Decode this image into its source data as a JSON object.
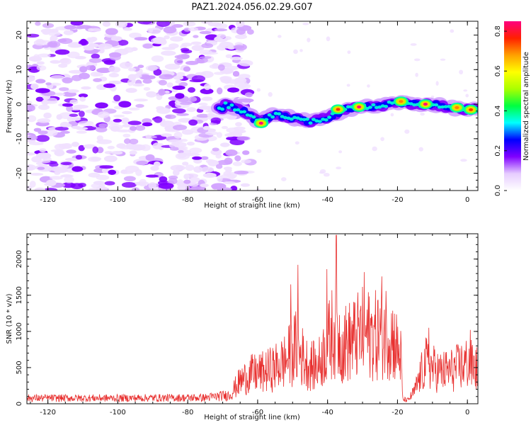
{
  "title": "PAZ1.2024.056.02.29.G07",
  "colors": {
    "snr_line": "#e8302f",
    "axes": "#111111",
    "background": "#ffffff"
  },
  "chart_data": [
    {
      "type": "heatmap",
      "title": "PAZ1.2024.056.02.29.G07",
      "xlabel": "Height of straight line (km)",
      "ylabel": "Frequency (Hz)",
      "xlim": [
        -126,
        3
      ],
      "ylim": [
        -25,
        24
      ],
      "x_ticks": [
        -120,
        -100,
        -80,
        -60,
        -40,
        -20,
        0
      ],
      "y_ticks": [
        -20,
        -10,
        0,
        10,
        20
      ],
      "colorbar": {
        "label": "Normalized spectral amplitude",
        "range": [
          0,
          0.85
        ],
        "ticks": [
          0.0,
          0.2,
          0.4,
          0.6,
          0.8
        ],
        "colormap": "gist_rainbow_r",
        "stops": [
          "#ffffff",
          "#e6ccff",
          "#8000ff",
          "#0000ff",
          "#00ffff",
          "#00ff40",
          "#aaff00",
          "#ffff00",
          "#ffa000",
          "#ff2000",
          "#ff0080"
        ]
      },
      "ridge": {
        "description_points": [
          {
            "x": -70,
            "y": 0
          },
          {
            "x": -64,
            "y": -2
          },
          {
            "x": -60,
            "y": -5
          },
          {
            "x": -55,
            "y": -3
          },
          {
            "x": -50,
            "y": -4
          },
          {
            "x": -45,
            "y": -5
          },
          {
            "x": -40,
            "y": -4
          },
          {
            "x": -35,
            "y": -1.5
          },
          {
            "x": -30,
            "y": -0.8
          },
          {
            "x": -25,
            "y": -0.5
          },
          {
            "x": -20,
            "y": 0.5
          },
          {
            "x": -15,
            "y": 0
          },
          {
            "x": -10,
            "y": 0
          },
          {
            "x": -5,
            "y": -1
          },
          {
            "x": 0,
            "y": -1.5
          },
          {
            "x": 3,
            "y": -1.5
          }
        ],
        "peaks": [
          {
            "x": -59,
            "y": -5.5,
            "value": 0.85
          },
          {
            "x": -37,
            "y": -1.5,
            "value": 0.75
          },
          {
            "x": -31,
            "y": -0.8,
            "value": 0.85
          },
          {
            "x": -19,
            "y": 0.8,
            "value": 0.7
          },
          {
            "x": -12,
            "y": 0,
            "value": 0.85
          },
          {
            "x": -3,
            "y": -1,
            "value": 0.7
          },
          {
            "x": 1,
            "y": -1.6,
            "value": 0.75
          }
        ]
      }
    },
    {
      "type": "line",
      "xlabel": "Height of straight line (km)",
      "ylabel": "SNR (10 * v/v)",
      "xlim": [
        -126,
        3
      ],
      "ylim": [
        0,
        2350
      ],
      "x_ticks": [
        -120,
        -100,
        -80,
        -60,
        -40,
        -20,
        0
      ],
      "y_ticks": [
        0,
        500,
        1000,
        1500,
        2000
      ],
      "envelope": [
        {
          "x": -126,
          "y": 130
        },
        {
          "x": -100,
          "y": 130
        },
        {
          "x": -75,
          "y": 140
        },
        {
          "x": -68,
          "y": 200
        },
        {
          "x": -65,
          "y": 500
        },
        {
          "x": -62,
          "y": 650
        },
        {
          "x": -58,
          "y": 700
        },
        {
          "x": -55,
          "y": 800
        },
        {
          "x": -52,
          "y": 950
        },
        {
          "x": -49,
          "y": 1250
        },
        {
          "x": -46,
          "y": 900
        },
        {
          "x": -43,
          "y": 800
        },
        {
          "x": -40,
          "y": 1300
        },
        {
          "x": -38,
          "y": 1700
        },
        {
          "x": -36,
          "y": 1300
        },
        {
          "x": -33,
          "y": 1400
        },
        {
          "x": -30,
          "y": 1550
        },
        {
          "x": -26,
          "y": 1500
        },
        {
          "x": -23,
          "y": 1650
        },
        {
          "x": -21,
          "y": 1400
        },
        {
          "x": -19,
          "y": 1000
        },
        {
          "x": -18.5,
          "y": 100
        },
        {
          "x": -17,
          "y": 80
        },
        {
          "x": -15,
          "y": 300
        },
        {
          "x": -12,
          "y": 900
        },
        {
          "x": -8,
          "y": 700
        },
        {
          "x": -4,
          "y": 750
        },
        {
          "x": 0,
          "y": 900
        },
        {
          "x": 3,
          "y": 750
        }
      ],
      "spikes": [
        {
          "x": -48.5,
          "y": 1920
        },
        {
          "x": -50.5,
          "y": 1650
        },
        {
          "x": -37.5,
          "y": 2330
        },
        {
          "x": -40.2,
          "y": 1860
        },
        {
          "x": -29.5,
          "y": 1820
        },
        {
          "x": -24.5,
          "y": 1760
        },
        {
          "x": -11,
          "y": 1050
        },
        {
          "x": 0.8,
          "y": 1020
        }
      ]
    }
  ]
}
